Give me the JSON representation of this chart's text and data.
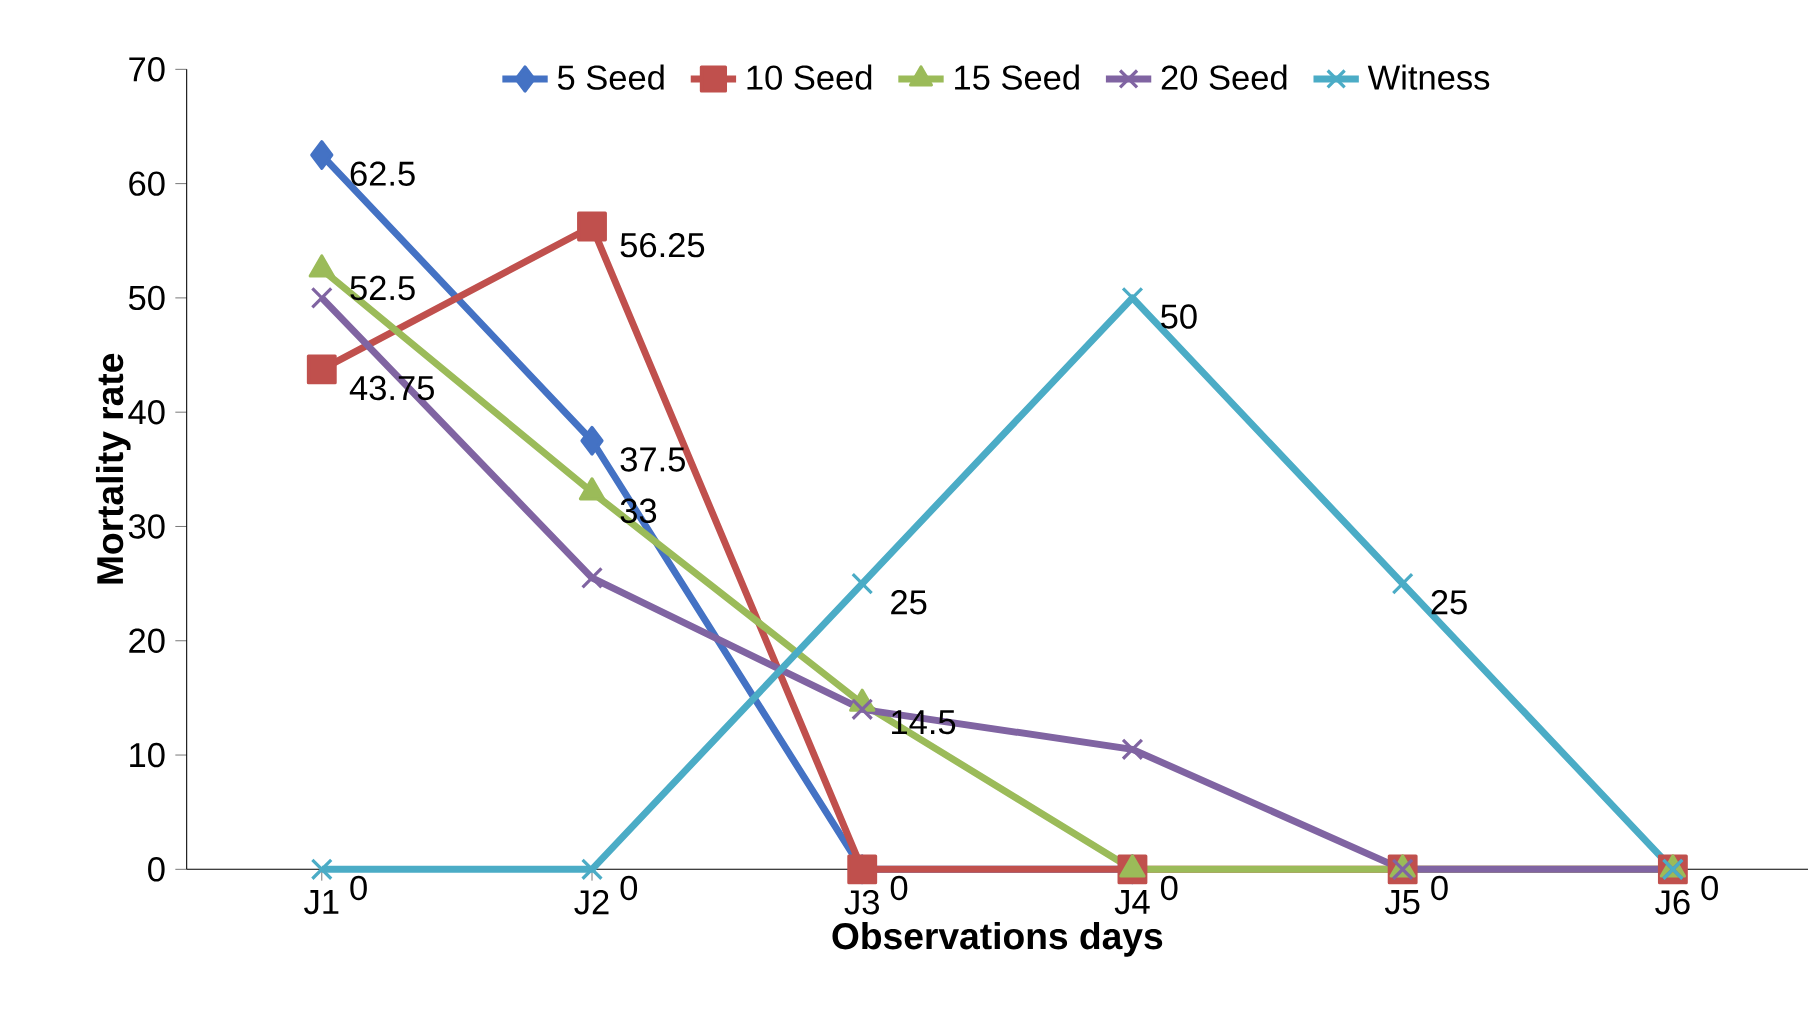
{
  "chart_data": {
    "type": "line",
    "xlabel": "Observations days",
    "ylabel": "Mortality rate",
    "categories": [
      "J1",
      "J2",
      "J3",
      "J4",
      "J5",
      "J6"
    ],
    "ylim": [
      0,
      70
    ],
    "yticks": [
      0,
      10,
      20,
      30,
      40,
      50,
      60,
      70
    ],
    "grid": false,
    "legend": "top",
    "series": [
      {
        "name": "5 Seed",
        "color": "#4472c4",
        "marker": "diamond",
        "values": [
          62.5,
          37.5,
          0,
          0,
          null,
          null
        ],
        "value_labels": [
          "62.5",
          "37.5",
          "0",
          "0",
          null,
          null
        ]
      },
      {
        "name": "10 Seed",
        "color": "#c0504d",
        "marker": "square",
        "values": [
          43.75,
          56.25,
          0,
          0,
          0,
          0
        ],
        "value_labels": [
          "43.75",
          "56.25",
          null,
          null,
          null,
          null
        ]
      },
      {
        "name": "15 Seed",
        "color": "#9bbb59",
        "marker": "triangle",
        "values": [
          52.5,
          33,
          14.5,
          0,
          0,
          0
        ],
        "value_labels": [
          "52.5",
          "33",
          "14.5",
          null,
          null,
          null
        ]
      },
      {
        "name": "20 Seed",
        "color": "#8064a2",
        "marker": "cross",
        "values": [
          50,
          25.5,
          14,
          10.5,
          0,
          0
        ],
        "value_labels": [
          null,
          null,
          null,
          null,
          "0",
          null
        ]
      },
      {
        "name": "Witness",
        "color": "#4bacc6",
        "marker": "cross",
        "values": [
          0,
          0,
          25,
          50,
          25,
          0
        ],
        "value_labels": [
          "0",
          "0",
          "25",
          "50",
          "25",
          "0"
        ]
      }
    ]
  }
}
